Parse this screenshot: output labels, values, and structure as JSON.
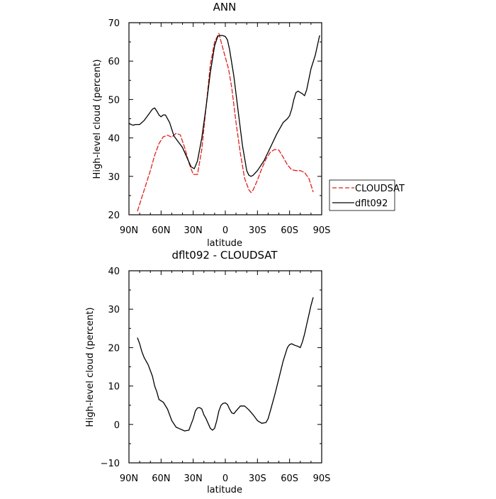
{
  "chart_data": [
    {
      "type": "line",
      "title": "ANN",
      "xlabel": "latitude",
      "ylabel": "High-level cloud (percent)",
      "xlim": [
        90,
        -90
      ],
      "ylim": [
        20,
        70
      ],
      "xticks": [
        90,
        60,
        30,
        0,
        -30,
        -60,
        -90
      ],
      "xtick_labels": [
        "90N",
        "60N",
        "30N",
        "0",
        "30S",
        "60S",
        "90S"
      ],
      "yticks": [
        20,
        30,
        40,
        50,
        60,
        70
      ],
      "ytick_labels": [
        "20",
        "30",
        "40",
        "50",
        "60",
        "70"
      ],
      "legend": {
        "placement": "right",
        "entries": [
          "CLOUDSAT",
          "dflt092"
        ]
      },
      "series": [
        {
          "name": "CLOUDSAT",
          "color": "#e0201b",
          "dash": "dashed",
          "x": [
            82,
            78,
            74,
            70,
            66,
            62,
            58,
            54,
            50,
            46,
            42,
            38,
            34,
            30,
            26,
            22,
            18,
            14,
            10,
            6,
            3,
            0,
            -3,
            -6,
            -10,
            -14,
            -18,
            -22,
            -24,
            -26,
            -30,
            -34,
            -38,
            -42,
            -46,
            -50,
            -54,
            -58,
            -62,
            -66,
            -70,
            -74,
            -78,
            -82
          ],
          "y": [
            21.0,
            24.5,
            28.0,
            31.5,
            35.5,
            38.5,
            40.3,
            40.7,
            40.2,
            41.2,
            40.8,
            37.5,
            33.5,
            30.5,
            30.5,
            37.0,
            48.0,
            59.0,
            65.0,
            67.2,
            64.0,
            61.0,
            58.0,
            53.0,
            44.0,
            36.0,
            29.5,
            26.5,
            25.8,
            26.5,
            29.0,
            32.0,
            34.5,
            36.3,
            37.0,
            36.8,
            35.0,
            33.0,
            31.7,
            31.5,
            31.5,
            31.0,
            29.5,
            26.0
          ]
        },
        {
          "name": "dflt092",
          "color": "#000000",
          "dash": "solid",
          "x": [
            90,
            88,
            86,
            84,
            80,
            76,
            72,
            68,
            66,
            64,
            62,
            60,
            58,
            56,
            52,
            48,
            44,
            40,
            36,
            32,
            29,
            26,
            22,
            18,
            14,
            10,
            7,
            4,
            2,
            0,
            -2,
            -4,
            -8,
            -12,
            -16,
            -20,
            -22,
            -24,
            -26,
            -30,
            -36,
            -42,
            -48,
            -54,
            -58,
            -60,
            -62,
            -64,
            -66,
            -68,
            -70,
            -72,
            -74,
            -76,
            -80,
            -84,
            -88
          ],
          "y": [
            43.8,
            43.5,
            43.3,
            43.5,
            43.5,
            44.5,
            46.0,
            47.5,
            47.8,
            47.0,
            46.0,
            45.5,
            46.0,
            46.0,
            44.0,
            40.5,
            39.0,
            37.5,
            35.0,
            32.5,
            32.0,
            34.0,
            40.0,
            48.0,
            57.0,
            64.0,
            66.5,
            66.7,
            66.6,
            66.4,
            65.5,
            63.0,
            56.0,
            47.0,
            38.0,
            31.5,
            30.3,
            30.0,
            30.3,
            31.5,
            34.0,
            37.5,
            41.0,
            44.0,
            45.0,
            45.8,
            47.5,
            50.0,
            51.8,
            52.2,
            51.8,
            51.5,
            51.0,
            52.5,
            58.0,
            61.5,
            66.6
          ]
        }
      ]
    },
    {
      "type": "line",
      "title": "dflt092 - CLOUDSAT",
      "xlabel": "latitude",
      "ylabel": "High-level cloud (percent)",
      "xlim": [
        90,
        -90
      ],
      "ylim": [
        -10,
        40
      ],
      "xticks": [
        90,
        60,
        30,
        0,
        -30,
        -60,
        -90
      ],
      "xtick_labels": [
        "90N",
        "60N",
        "30N",
        "0",
        "30S",
        "60S",
        "90S"
      ],
      "yticks": [
        -10,
        0,
        10,
        20,
        30,
        40
      ],
      "ytick_labels": [
        "−10",
        "0",
        "10",
        "20",
        "30",
        "40"
      ],
      "series": [
        {
          "color": "#000000",
          "dash": "solid",
          "x": [
            82,
            80,
            78,
            76,
            74,
            72,
            70,
            68,
            66,
            64,
            62,
            58,
            54,
            50,
            46,
            42,
            38,
            34,
            32,
            30,
            28,
            26,
            24,
            22,
            20,
            18,
            14,
            12,
            10,
            8,
            6,
            4,
            2,
            0,
            -2,
            -4,
            -6,
            -8,
            -10,
            -14,
            -18,
            -22,
            -26,
            -30,
            -34,
            -38,
            -40,
            -42,
            -46,
            -50,
            -54,
            -58,
            -60,
            -62,
            -64,
            -66,
            -68,
            -70,
            -72,
            -74,
            -76,
            -78,
            -80,
            -82
          ],
          "y": [
            22.5,
            21.0,
            19.0,
            17.5,
            16.5,
            15.5,
            14.0,
            12.5,
            10.0,
            8.5,
            6.5,
            5.8,
            4.0,
            1.0,
            -0.7,
            -1.2,
            -1.7,
            -1.5,
            0.0,
            1.5,
            3.5,
            4.3,
            4.4,
            4.0,
            2.5,
            1.5,
            -1.0,
            -1.5,
            -1.0,
            1.0,
            3.5,
            5.0,
            5.5,
            5.6,
            5.2,
            4.0,
            3.0,
            2.8,
            3.5,
            4.8,
            4.8,
            3.8,
            2.5,
            1.0,
            0.3,
            0.5,
            1.5,
            3.5,
            7.5,
            12.0,
            16.5,
            20.0,
            20.8,
            21.0,
            20.7,
            20.5,
            20.3,
            20.0,
            21.5,
            23.5,
            26.0,
            28.5,
            31.0,
            33.0
          ]
        }
      ]
    }
  ]
}
